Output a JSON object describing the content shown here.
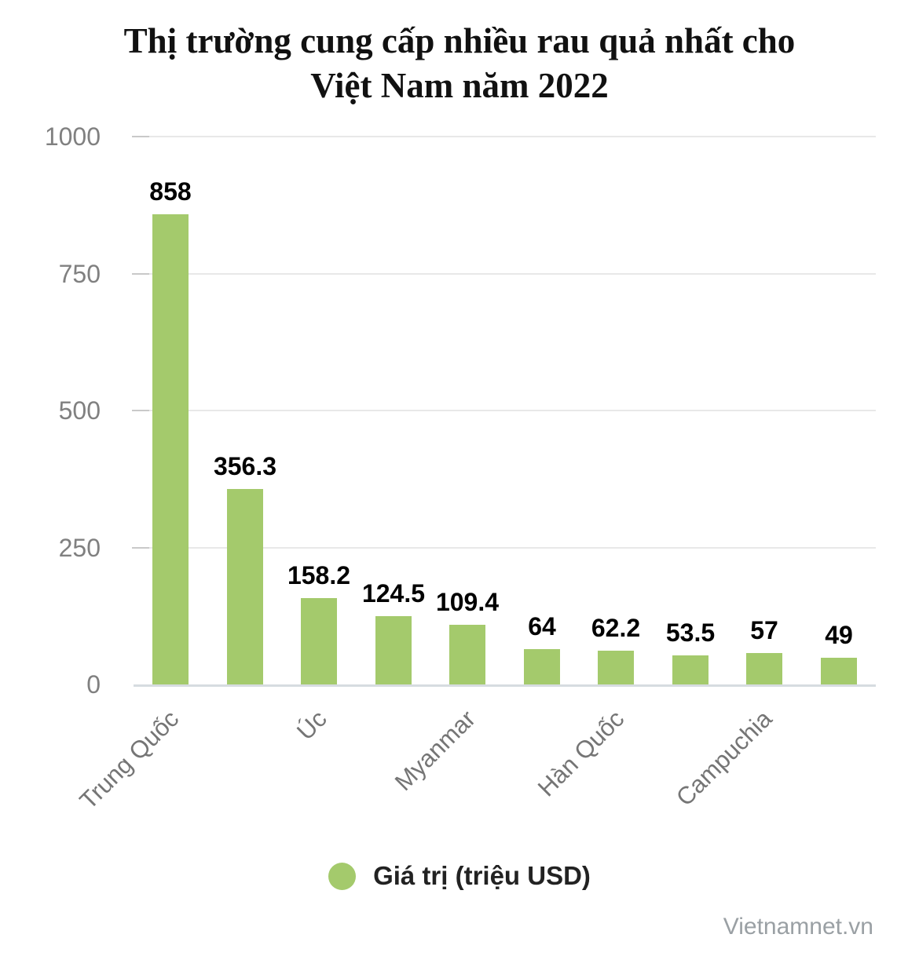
{
  "header": {
    "title_line1": "Thị trường cung cấp nhiều rau quả nhất cho",
    "title_line2": "Việt Nam năm 2022"
  },
  "legend": {
    "label": "Giá trị (triệu USD)",
    "marker_color": "#a4ca6c"
  },
  "watermark": "Vietnamnet.vn",
  "colors": {
    "bar": "#a4ca6c",
    "gridline": "#e8e8e8",
    "tick": "#c9c9c9",
    "axis_line": "#d6dce0",
    "y_label": "#808080",
    "x_label": "#757575",
    "value_label": "#000000",
    "title": "#111111",
    "watermark": "#9aa0a4"
  },
  "chart_data": {
    "type": "bar",
    "title": "Thị trường cung cấp nhiều rau quả nhất cho Việt Nam năm 2022",
    "series_name": "Giá trị (triệu USD)",
    "categories": [
      "Trung Quốc",
      "",
      "Úc",
      "",
      "Myanmar",
      "",
      "Hàn Quốc",
      "",
      "Campuchia",
      ""
    ],
    "values": [
      858,
      356.3,
      158.2,
      124.5,
      109.4,
      64,
      62.2,
      53.5,
      57,
      49
    ],
    "value_labels": [
      "858",
      "356.3",
      "158.2",
      "124.5",
      "109.4",
      "64",
      "62.2",
      "53.5",
      "57",
      "49"
    ],
    "x_tick_labels": [
      {
        "index": 0,
        "label": "Trung Quốc"
      },
      {
        "index": 2,
        "label": "Úc"
      },
      {
        "index": 4,
        "label": "Myanmar"
      },
      {
        "index": 6,
        "label": "Hàn Quốc"
      },
      {
        "index": 8,
        "label": "Campuchia"
      }
    ],
    "xlabel": "",
    "ylabel": "",
    "yticks": [
      0,
      250,
      500,
      750,
      1000
    ],
    "ylim": [
      0,
      1000
    ],
    "grid": "horizontal",
    "legend_position": "bottom",
    "bar_color": "#a4ca6c"
  }
}
